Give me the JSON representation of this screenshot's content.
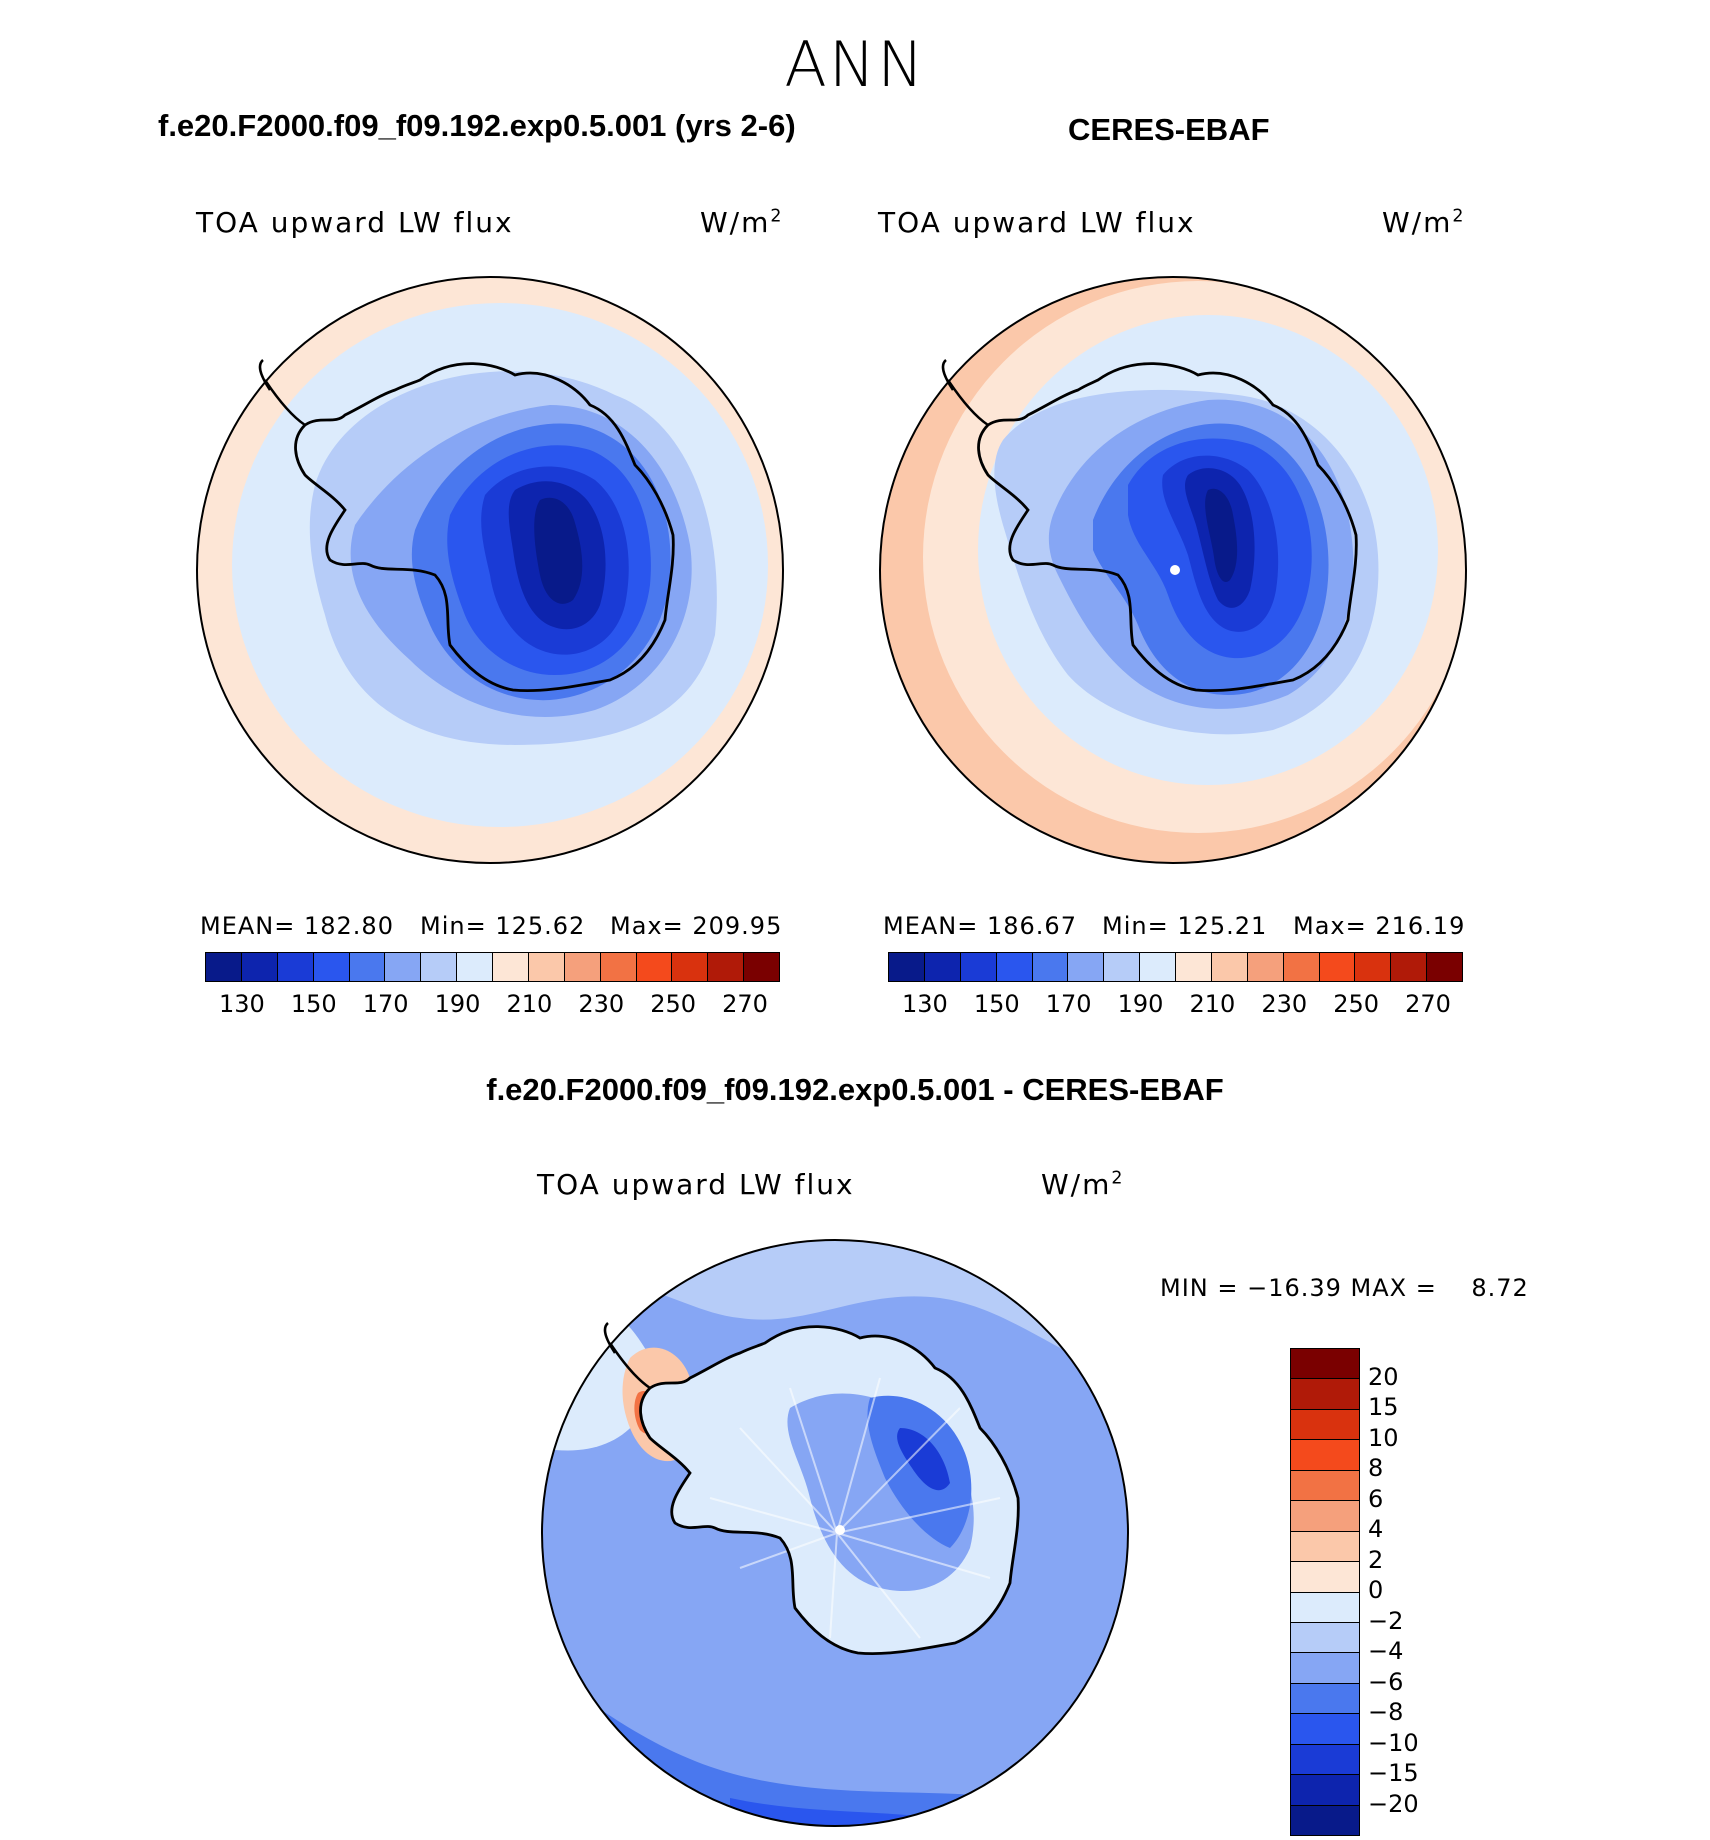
{
  "season": "ANN",
  "diff_title": "f.e20.F2000.f09_f09.192.exp0.5.001 - CERES-EBAF",
  "panels": {
    "model": {
      "title": "f.e20.F2000.f09_f09.192.exp0.5.001 (yrs 2-6)",
      "field": "TOA upward LW flux",
      "units_base": "W/m",
      "units_exp": "2",
      "stats": {
        "mean": "MEAN= 182.80",
        "min": "Min= 125.62",
        "max": "Max= 209.95"
      }
    },
    "obs": {
      "title": "CERES-EBAF",
      "field": "TOA upward LW flux",
      "units_base": "W/m",
      "units_exp": "2",
      "stats": {
        "mean": "MEAN= 186.67",
        "min": "Min= 125.21",
        "max": "Max= 216.19"
      }
    },
    "diff": {
      "field": "TOA upward LW flux",
      "units_base": "W/m",
      "units_exp": "2",
      "minmax": "MIN = −16.39 MAX =    8.72"
    }
  },
  "colorbar_main": {
    "colors": [
      "#081a8a",
      "#0d24ae",
      "#1a3bd6",
      "#2a56ee",
      "#4a78ee",
      "#86a6f4",
      "#b6ccf8",
      "#dcebfc",
      "#fde6d6",
      "#fbc8aa",
      "#f5a07c",
      "#f27244",
      "#f44a1c",
      "#d9320e",
      "#b01a08",
      "#7a0000"
    ],
    "ticks": [
      "130",
      "150",
      "170",
      "190",
      "210",
      "230",
      "250",
      "270"
    ]
  },
  "colorbar_diff": {
    "colors": [
      "#7a0000",
      "#b01a08",
      "#d9320e",
      "#f44a1c",
      "#f27244",
      "#f5a07c",
      "#fbc8aa",
      "#fde6d6",
      "#dcebfc",
      "#b6ccf8",
      "#86a6f4",
      "#4a78ee",
      "#2a56ee",
      "#1a3bd6",
      "#0d24ae",
      "#081a8a"
    ],
    "ticks": [
      "20",
      "15",
      "10",
      "8",
      "6",
      "4",
      "2",
      "0",
      "−2",
      "−4",
      "−6",
      "−8",
      "−10",
      "−15",
      "−20"
    ]
  },
  "chart_data": {
    "type": "heatmap",
    "projection": "south-polar-stereographic",
    "variable": "TOA upward LW flux",
    "units": "W/m2",
    "panels": [
      {
        "name": "f.e20.F2000.f09_f09.192.exp0.5.001 (yrs 2-6)",
        "mean": 182.8,
        "min": 125.62,
        "max": 209.95
      },
      {
        "name": "CERES-EBAF",
        "mean": 186.67,
        "min": 125.21,
        "max": 216.19
      },
      {
        "name": "f.e20.F2000.f09_f09.192.exp0.5.001 - CERES-EBAF",
        "min": -16.39,
        "max": 8.72
      }
    ],
    "contour_levels_main": [
      130,
      140,
      150,
      160,
      170,
      180,
      190,
      200,
      210,
      220,
      230,
      240,
      250,
      260,
      270
    ],
    "contour_levels_diff": [
      -20,
      -15,
      -10,
      -8,
      -6,
      -4,
      -2,
      0,
      2,
      4,
      6,
      8,
      10,
      15,
      20
    ]
  }
}
